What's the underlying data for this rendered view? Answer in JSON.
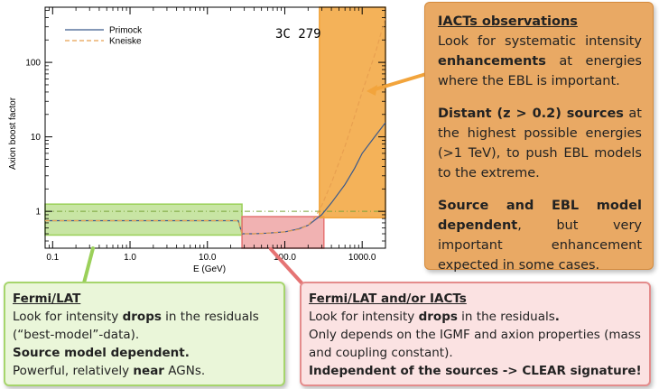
{
  "chart_data": {
    "type": "line",
    "title": "3C 279",
    "xlabel": "E (GeV)",
    "ylabel": "Axion boost factor",
    "xscale": "log",
    "yscale": "log",
    "xlim": [
      0.08,
      2000
    ],
    "ylim": [
      0.32,
      550
    ],
    "xticks": [
      "0.1",
      "1.0",
      "10.0",
      "100.0",
      "1000.0"
    ],
    "yticks": [
      "1",
      "10",
      "100"
    ],
    "legend_position": "top-left",
    "reference_line": {
      "y": 1,
      "style": "dash-dot"
    },
    "series": [
      {
        "name": "Primock",
        "color": "#3a5a8c",
        "style": "solid",
        "x": [
          0.08,
          25,
          28,
          30,
          40,
          60,
          100,
          150,
          200,
          300,
          400,
          600,
          800,
          1000,
          1500,
          2000
        ],
        "y": [
          0.75,
          0.75,
          0.5,
          0.5,
          0.5,
          0.51,
          0.53,
          0.58,
          0.65,
          0.9,
          1.3,
          2.3,
          3.8,
          6.0,
          10.5,
          15.5
        ]
      },
      {
        "name": "Kneiske",
        "color": "#e8a050",
        "style": "dashed",
        "x": [
          0.08,
          25,
          28,
          30,
          40,
          60,
          100,
          150,
          200,
          250,
          300,
          400,
          600,
          800,
          1000,
          1500,
          2000
        ],
        "y": [
          0.75,
          0.75,
          0.5,
          0.5,
          0.5,
          0.51,
          0.53,
          0.57,
          0.65,
          0.85,
          1.2,
          2.4,
          7.5,
          19,
          40,
          140,
          400
        ]
      }
    ],
    "highlight_regions": [
      {
        "label": "Fermi/LAT",
        "x": [
          0.08,
          28
        ],
        "y": [
          0.48,
          1.25
        ],
        "color": "#9bd05a"
      },
      {
        "label": "Fermi/LAT and/or IACTs",
        "x": [
          28,
          320
        ],
        "y": [
          0.32,
          0.85
        ],
        "color": "#e57373"
      },
      {
        "label": "IACTs observations",
        "x": [
          280,
          2000
        ],
        "y": [
          0.82,
          550
        ],
        "color": "#f2a43c"
      }
    ]
  },
  "boxes": {
    "iacts": {
      "title": "IACTs observations",
      "p1_a": "Look for systematic intensity ",
      "p1_b": "enhancements",
      "p1_c": " at energies where the EBL is important.",
      "p2_a": "Distant (z > 0.2) sources",
      "p2_b": " at the highest possible energies (>1 TeV), to push EBL models to the extreme.",
      "p3_a": "Source and EBL model dependent",
      "p3_b": ", but very important enhancement expected in some cases."
    },
    "fermi": {
      "title": "Fermi/LAT",
      "l1_a": "Look for intensity ",
      "l1_b": "drops",
      "l1_c": " in the residuals (“best-model”-data).",
      "l2": "Source model dependent.",
      "l3_a": "Powerful, relatively ",
      "l3_b": "near",
      "l3_c": " AGNs."
    },
    "fermi_iact": {
      "title": "Fermi/LAT and/or IACTs",
      "l1_a": "Look for intensity ",
      "l1_b": "drops",
      "l1_c": " in the residuals",
      "l1_d": ".",
      "l2": "Only depends on the IGMF and axion properties (mass and coupling constant).",
      "l3": "Independent of the sources -> CLEAR signature!"
    }
  },
  "colors": {
    "green": "#9bd05a",
    "red": "#e57373",
    "orange": "#f2a43c"
  }
}
